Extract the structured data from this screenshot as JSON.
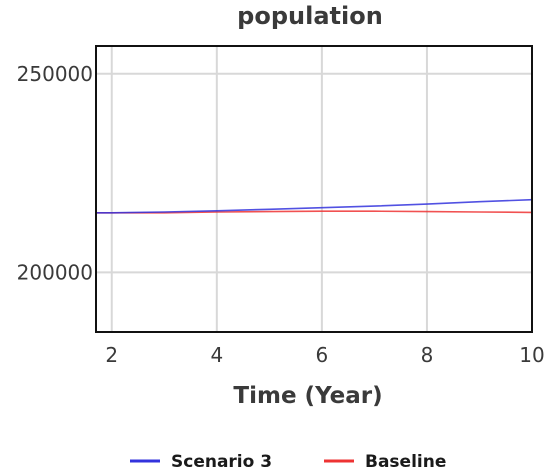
{
  "chart_data": {
    "type": "line",
    "title": "population",
    "xlabel": "Time (Year)",
    "ylabel": "",
    "x": [
      1.7,
      2,
      3,
      4,
      5,
      6,
      7,
      8,
      9,
      10
    ],
    "xlim": [
      1.7,
      10
    ],
    "ylim": [
      185000,
      257000
    ],
    "xticks": [
      2,
      4,
      6,
      8,
      10
    ],
    "yticks": [
      200000,
      250000
    ],
    "grid": true,
    "legend_position": "bottom",
    "series": [
      {
        "name": "Scenario 3",
        "color": "#3333dd",
        "values": [
          215000,
          215000,
          215200,
          215500,
          215900,
          216300,
          216700,
          217200,
          217800,
          218300
        ]
      },
      {
        "name": "Baseline",
        "color": "#ee3333",
        "values": [
          215000,
          215000,
          215000,
          215200,
          215300,
          215400,
          215400,
          215300,
          215200,
          215100
        ]
      }
    ]
  }
}
